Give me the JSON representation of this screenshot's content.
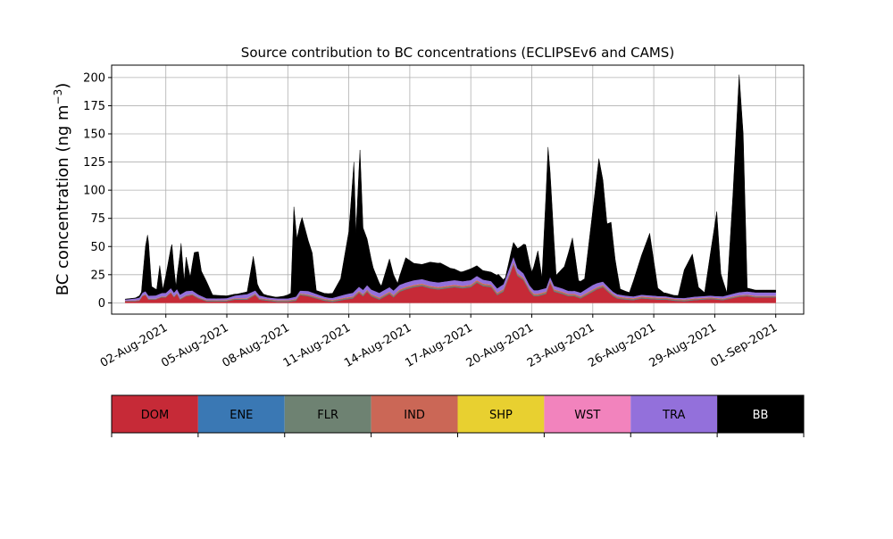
{
  "chart_data": {
    "type": "area",
    "stacked": true,
    "title": "Source contribution to BC concentrations (ECLIPSEv6 and CAMS)",
    "ylabel_main": "BC concentration (ng m",
    "ylabel_sup": "−3",
    "ylabel_close": ")",
    "xlabel": "",
    "x_start": "2021-07-31",
    "x_end": "2021-09-01",
    "x_unit": "day",
    "xlim": [
      "2021-07-30T08:00",
      "2021-09-02T09:00"
    ],
    "ylim": [
      -10,
      211
    ],
    "yticks": [
      0,
      25,
      50,
      75,
      100,
      125,
      150,
      175,
      200
    ],
    "xticks": [
      {
        "x": "2021-08-02",
        "label": "02-Aug-2021"
      },
      {
        "x": "2021-08-05",
        "label": "05-Aug-2021"
      },
      {
        "x": "2021-08-08",
        "label": "08-Aug-2021"
      },
      {
        "x": "2021-08-11",
        "label": "11-Aug-2021"
      },
      {
        "x": "2021-08-14",
        "label": "14-Aug-2021"
      },
      {
        "x": "2021-08-17",
        "label": "17-Aug-2021"
      },
      {
        "x": "2021-08-20",
        "label": "20-Aug-2021"
      },
      {
        "x": "2021-08-23",
        "label": "23-Aug-2021"
      },
      {
        "x": "2021-08-26",
        "label": "26-Aug-2021"
      },
      {
        "x": "2021-08-29",
        "label": "29-Aug-2021"
      },
      {
        "x": "2021-09-01",
        "label": "01-Sep-2021"
      }
    ],
    "grid": true,
    "legend_position": "below",
    "series": [
      {
        "name": "DOM",
        "color": "#c62a37",
        "points": [
          [
            0,
            1.5
          ],
          [
            0.5,
            1.5
          ],
          [
            0.7,
            2
          ],
          [
            0.85,
            6
          ],
          [
            1,
            7
          ],
          [
            1.15,
            3
          ],
          [
            1.5,
            3
          ],
          [
            1.8,
            5
          ],
          [
            2,
            5
          ],
          [
            2.25,
            9
          ],
          [
            2.4,
            5
          ],
          [
            2.55,
            8
          ],
          [
            2.7,
            3
          ],
          [
            3,
            6
          ],
          [
            3.3,
            7
          ],
          [
            3.6,
            4
          ],
          [
            4,
            1.5
          ],
          [
            4.5,
            1.3
          ],
          [
            5,
            1.5
          ],
          [
            5.4,
            3
          ],
          [
            6,
            3
          ],
          [
            6.4,
            7
          ],
          [
            6.6,
            3
          ],
          [
            7,
            2
          ],
          [
            7.5,
            1
          ],
          [
            8,
            1
          ],
          [
            8.4,
            2
          ],
          [
            8.6,
            7
          ],
          [
            9,
            6
          ],
          [
            9.4,
            4
          ],
          [
            9.8,
            2
          ],
          [
            10.2,
            1
          ],
          [
            10.8,
            3
          ],
          [
            11.2,
            4
          ],
          [
            11.5,
            9
          ],
          [
            11.7,
            6
          ],
          [
            11.9,
            10
          ],
          [
            12.1,
            6
          ],
          [
            12.5,
            3
          ],
          [
            13,
            8
          ],
          [
            13.2,
            5
          ],
          [
            13.5,
            10
          ],
          [
            13.8,
            12
          ],
          [
            14.2,
            14
          ],
          [
            14.6,
            15
          ],
          [
            15,
            13
          ],
          [
            15.4,
            12
          ],
          [
            15.8,
            13
          ],
          [
            16.2,
            14
          ],
          [
            16.6,
            13
          ],
          [
            17,
            14
          ],
          [
            17.3,
            18
          ],
          [
            17.6,
            15
          ],
          [
            18,
            14
          ],
          [
            18.3,
            7
          ],
          [
            18.6,
            10
          ],
          [
            18.9,
            24
          ],
          [
            19.1,
            34
          ],
          [
            19.3,
            24
          ],
          [
            19.6,
            20
          ],
          [
            19.9,
            10
          ],
          [
            20.1,
            6
          ],
          [
            20.3,
            6
          ],
          [
            20.7,
            8
          ],
          [
            20.9,
            18
          ],
          [
            21.1,
            10
          ],
          [
            21.5,
            8
          ],
          [
            21.8,
            6
          ],
          [
            22.1,
            6
          ],
          [
            22.4,
            4
          ],
          [
            22.8,
            8
          ],
          [
            23.2,
            12
          ],
          [
            23.5,
            14
          ],
          [
            23.8,
            9
          ],
          [
            24,
            6
          ],
          [
            24.2,
            4
          ],
          [
            24.6,
            3
          ],
          [
            25,
            2.5
          ],
          [
            25.4,
            4
          ],
          [
            25.8,
            3.5
          ],
          [
            26.2,
            3
          ],
          [
            26.6,
            3
          ],
          [
            27,
            2
          ],
          [
            27.5,
            1.5
          ],
          [
            28,
            2.5
          ],
          [
            28.4,
            3
          ],
          [
            28.8,
            3.5
          ],
          [
            29.4,
            2.5
          ],
          [
            29.8,
            4
          ],
          [
            30.2,
            5.5
          ],
          [
            30.6,
            6
          ],
          [
            31,
            5
          ]
        ]
      },
      {
        "name": "ENE",
        "color": "#3a78b4",
        "points": [
          [
            0,
            0.05
          ],
          [
            31,
            0.05
          ]
        ]
      },
      {
        "name": "FLR",
        "color": "#6e8272",
        "points": [
          [
            0,
            0.3
          ],
          [
            5,
            0.6
          ],
          [
            10,
            0.8
          ],
          [
            15,
            1
          ],
          [
            20,
            1
          ],
          [
            25,
            0.8
          ],
          [
            31,
            0.6
          ]
        ]
      },
      {
        "name": "IND",
        "color": "#cb6756",
        "points": [
          [
            0,
            0.3
          ],
          [
            8,
            0.6
          ],
          [
            14,
            1
          ],
          [
            19,
            1.2
          ],
          [
            24,
            0.9
          ],
          [
            31,
            0.6
          ]
        ]
      },
      {
        "name": "SHP",
        "color": "#e8d030",
        "points": [
          [
            0,
            0.05
          ],
          [
            31,
            0.05
          ]
        ]
      },
      {
        "name": "WST",
        "color": "#f283bd",
        "points": [
          [
            0,
            0.05
          ],
          [
            31,
            0.05
          ]
        ]
      },
      {
        "name": "TRA",
        "color": "#9370db",
        "points": [
          [
            0,
            0.8
          ],
          [
            1,
            2.5
          ],
          [
            2,
            3
          ],
          [
            3,
            3.5
          ],
          [
            4,
            1.5
          ],
          [
            5,
            1.5
          ],
          [
            6,
            3.5
          ],
          [
            7,
            1.5
          ],
          [
            8,
            1.5
          ],
          [
            9,
            3
          ],
          [
            10,
            1.5
          ],
          [
            11,
            3
          ],
          [
            12,
            4
          ],
          [
            13,
            4
          ],
          [
            14,
            4
          ],
          [
            15,
            4
          ],
          [
            16,
            4
          ],
          [
            17,
            4
          ],
          [
            18,
            3
          ],
          [
            19,
            5
          ],
          [
            20,
            3
          ],
          [
            21,
            3
          ],
          [
            22,
            2.5
          ],
          [
            23,
            4
          ],
          [
            24,
            2
          ],
          [
            25,
            1.5
          ],
          [
            26,
            1.5
          ],
          [
            27,
            1
          ],
          [
            28,
            1.5
          ],
          [
            29,
            1.5
          ],
          [
            30,
            2.5
          ],
          [
            31,
            3
          ]
        ]
      },
      {
        "name": "BB",
        "color": "#000000",
        "points": [
          [
            0,
            0.3
          ],
          [
            0.5,
            0.4
          ],
          [
            0.8,
            2
          ],
          [
            1,
            40
          ],
          [
            1.12,
            55
          ],
          [
            1.3,
            8
          ],
          [
            1.55,
            5
          ],
          [
            1.7,
            25
          ],
          [
            1.85,
            3
          ],
          [
            2.3,
            40
          ],
          [
            2.5,
            3
          ],
          [
            2.75,
            45
          ],
          [
            2.9,
            10
          ],
          [
            3,
            30
          ],
          [
            3.2,
            12
          ],
          [
            3.4,
            35
          ],
          [
            3.6,
            38
          ],
          [
            3.75,
            22
          ],
          [
            4,
            15
          ],
          [
            4.3,
            3
          ],
          [
            5,
            2
          ],
          [
            5.5,
            1
          ],
          [
            6,
            2
          ],
          [
            6.3,
            31
          ],
          [
            6.5,
            8
          ],
          [
            6.8,
            2
          ],
          [
            7.4,
            1
          ],
          [
            7.8,
            2
          ],
          [
            8.15,
            4
          ],
          [
            8.3,
            80
          ],
          [
            8.45,
            50
          ],
          [
            8.7,
            65
          ],
          [
            9,
            45
          ],
          [
            9.2,
            35
          ],
          [
            9.4,
            3
          ],
          [
            9.8,
            3
          ],
          [
            10.2,
            4
          ],
          [
            10.6,
            15
          ],
          [
            11,
            55
          ],
          [
            11.25,
            115
          ],
          [
            11.35,
            50
          ],
          [
            11.55,
            122
          ],
          [
            11.7,
            55
          ],
          [
            12.2,
            20
          ],
          [
            12.6,
            5
          ],
          [
            13,
            25
          ],
          [
            13.4,
            3
          ],
          [
            13.8,
            22
          ],
          [
            14.2,
            15
          ],
          [
            14.6,
            13
          ],
          [
            15,
            17
          ],
          [
            15.5,
            17
          ],
          [
            16,
            11
          ],
          [
            16.5,
            8
          ],
          [
            17,
            10
          ],
          [
            17.3,
            9
          ],
          [
            17.6,
            8
          ],
          [
            18,
            8
          ],
          [
            18.35,
            12
          ],
          [
            18.7,
            1
          ],
          [
            19,
            10
          ],
          [
            19.4,
            20
          ],
          [
            19.7,
            29
          ],
          [
            20,
            14
          ],
          [
            20.3,
            35
          ],
          [
            20.5,
            10
          ],
          [
            20.8,
            120
          ],
          [
            20.95,
            80
          ],
          [
            21.2,
            10
          ],
          [
            21.6,
            20
          ],
          [
            22,
            47
          ],
          [
            22.3,
            10
          ],
          [
            22.6,
            10
          ],
          [
            23.1,
            80
          ],
          [
            23.3,
            110
          ],
          [
            23.5,
            90
          ],
          [
            23.7,
            55
          ],
          [
            23.9,
            60
          ],
          [
            24.1,
            30
          ],
          [
            24.35,
            5
          ],
          [
            24.8,
            3
          ],
          [
            25.4,
            35
          ],
          [
            25.8,
            55
          ],
          [
            26.2,
            7
          ],
          [
            26.5,
            3
          ],
          [
            27,
            2
          ],
          [
            27.2,
            2
          ],
          [
            27.5,
            25
          ],
          [
            27.9,
            38
          ],
          [
            28.2,
            8
          ],
          [
            28.5,
            3
          ],
          [
            29.1,
            75
          ],
          [
            29.3,
            20
          ],
          [
            29.6,
            2
          ],
          [
            29.9,
            90
          ],
          [
            30.2,
            193
          ],
          [
            30.4,
            140
          ],
          [
            30.6,
            3
          ],
          [
            31,
            2
          ]
        ]
      }
    ]
  }
}
